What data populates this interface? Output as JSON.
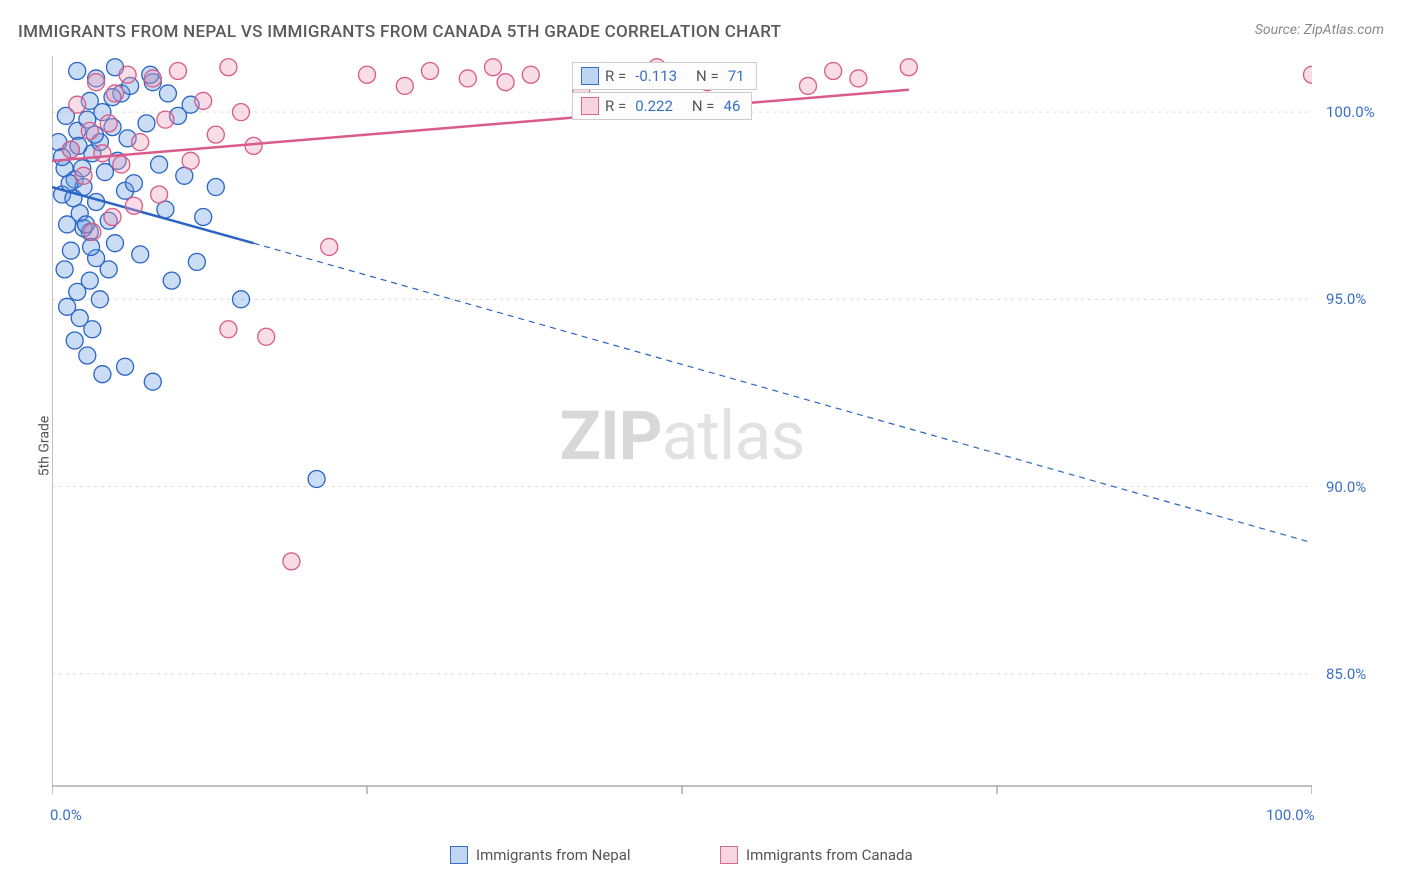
{
  "title": "IMMIGRANTS FROM NEPAL VS IMMIGRANTS FROM CANADA 5TH GRADE CORRELATION CHART",
  "source": "Source: ZipAtlas.com",
  "ylabel": "5th Grade",
  "watermark": {
    "bold": "ZIP",
    "light": "atlas"
  },
  "chart": {
    "type": "scatter",
    "xlim": [
      0,
      100
    ],
    "ylim": [
      82,
      101.5
    ],
    "yticks": [
      {
        "v": 85,
        "l": "85.0%"
      },
      {
        "v": 90,
        "l": "90.0%"
      },
      {
        "v": 95,
        "l": "95.0%"
      },
      {
        "v": 100,
        "l": "100.0%"
      }
    ],
    "xticks_minor": [
      0,
      25,
      50,
      75,
      100
    ],
    "xticks_labels": [
      {
        "v": 0,
        "l": "0.0%"
      },
      {
        "v": 100,
        "l": "100.0%"
      }
    ],
    "grid_color": "#dcdcdc",
    "axis_color": "#9a9a9a",
    "background_color": "#ffffff",
    "marker_radius": 8.5,
    "marker_stroke_width": 1.3,
    "marker_fill_opacity": 0.35,
    "series": [
      {
        "name": "Immigrants from Nepal",
        "color_stroke": "#2b65c4",
        "color_fill": "#6a9de0",
        "R": "-0.113",
        "N": "71",
        "trend": {
          "solid_from": {
            "x": 0,
            "y": 98.0
          },
          "solid_to": {
            "x": 16,
            "y": 96.5
          },
          "dash_to": {
            "x": 100,
            "y": 88.5
          },
          "width_solid": 2.5,
          "width_dash": 1.2,
          "dash": "6,5"
        },
        "points": [
          [
            0.8,
            97.8
          ],
          [
            1.0,
            98.5
          ],
          [
            1.2,
            97.0
          ],
          [
            1.5,
            99.0
          ],
          [
            1.8,
            98.2
          ],
          [
            2.0,
            99.5
          ],
          [
            2.2,
            97.3
          ],
          [
            2.5,
            98.0
          ],
          [
            2.8,
            99.8
          ],
          [
            3.0,
            96.8
          ],
          [
            3.2,
            98.9
          ],
          [
            3.5,
            97.6
          ],
          [
            3.8,
            99.2
          ],
          [
            4.0,
            100.0
          ],
          [
            4.2,
            98.4
          ],
          [
            4.5,
            97.1
          ],
          [
            4.8,
            99.6
          ],
          [
            5.0,
            96.5
          ],
          [
            5.2,
            98.7
          ],
          [
            5.5,
            100.5
          ],
          [
            5.8,
            97.9
          ],
          [
            6.0,
            99.3
          ],
          [
            6.5,
            98.1
          ],
          [
            7.0,
            96.2
          ],
          [
            7.5,
            99.7
          ],
          [
            8.0,
            100.8
          ],
          [
            8.5,
            98.6
          ],
          [
            9.0,
            97.4
          ],
          [
            9.5,
            95.5
          ],
          [
            10.0,
            99.9
          ],
          [
            10.5,
            98.3
          ],
          [
            11.0,
            100.2
          ],
          [
            11.5,
            96.0
          ],
          [
            12.0,
            97.2
          ],
          [
            1.0,
            95.8
          ],
          [
            1.5,
            96.3
          ],
          [
            2.0,
            95.2
          ],
          [
            2.5,
            96.9
          ],
          [
            3.0,
            95.5
          ],
          [
            3.5,
            96.1
          ],
          [
            1.2,
            94.8
          ],
          [
            2.2,
            94.5
          ],
          [
            3.8,
            95.0
          ],
          [
            4.5,
            95.8
          ],
          [
            1.8,
            93.9
          ],
          [
            3.2,
            94.2
          ],
          [
            2.8,
            93.5
          ],
          [
            4.0,
            93.0
          ],
          [
            5.8,
            93.2
          ],
          [
            8.0,
            92.8
          ],
          [
            3.5,
            100.9
          ],
          [
            4.8,
            100.4
          ],
          [
            6.2,
            100.7
          ],
          [
            7.8,
            101.0
          ],
          [
            9.2,
            100.5
          ],
          [
            2.0,
            101.1
          ],
          [
            3.0,
            100.3
          ],
          [
            5.0,
            101.2
          ],
          [
            13.0,
            98.0
          ],
          [
            15.0,
            95.0
          ],
          [
            21.0,
            90.2
          ],
          [
            0.5,
            99.2
          ],
          [
            0.8,
            98.8
          ],
          [
            1.1,
            99.9
          ],
          [
            1.4,
            98.1
          ],
          [
            1.7,
            97.7
          ],
          [
            2.1,
            99.1
          ],
          [
            2.4,
            98.5
          ],
          [
            2.7,
            97.0
          ],
          [
            3.1,
            96.4
          ],
          [
            3.4,
            99.4
          ]
        ]
      },
      {
        "name": "Immigrants from Canada",
        "color_stroke": "#d85b89",
        "color_fill": "#ec9ab6",
        "R": "0.222",
        "N": "46",
        "trend": {
          "solid_from": {
            "x": 0,
            "y": 98.7
          },
          "solid_to": {
            "x": 68,
            "y": 100.6
          },
          "dash_to": null,
          "width_solid": 2.5
        },
        "points": [
          [
            1.5,
            99.0
          ],
          [
            2.0,
            100.2
          ],
          [
            2.5,
            98.3
          ],
          [
            3.0,
            99.5
          ],
          [
            3.5,
            100.8
          ],
          [
            4.0,
            98.9
          ],
          [
            4.5,
            99.7
          ],
          [
            5.0,
            100.5
          ],
          [
            5.5,
            98.6
          ],
          [
            6.0,
            101.0
          ],
          [
            7.0,
            99.2
          ],
          [
            8.0,
            100.9
          ],
          [
            9.0,
            99.8
          ],
          [
            10.0,
            101.1
          ],
          [
            11.0,
            98.7
          ],
          [
            12.0,
            100.3
          ],
          [
            13.0,
            99.4
          ],
          [
            14.0,
            101.2
          ],
          [
            15.0,
            100.0
          ],
          [
            16.0,
            99.1
          ],
          [
            22.0,
            96.4
          ],
          [
            25.0,
            101.0
          ],
          [
            28.0,
            100.7
          ],
          [
            30.0,
            101.1
          ],
          [
            33.0,
            100.9
          ],
          [
            35.0,
            101.2
          ],
          [
            36.0,
            100.8
          ],
          [
            38.0,
            101.0
          ],
          [
            42.0,
            100.6
          ],
          [
            44.0,
            101.1
          ],
          [
            46.0,
            100.9
          ],
          [
            48.0,
            101.2
          ],
          [
            52.0,
            100.8
          ],
          [
            54.0,
            101.0
          ],
          [
            60.0,
            100.7
          ],
          [
            62.0,
            101.1
          ],
          [
            64.0,
            100.9
          ],
          [
            68.0,
            101.2
          ],
          [
            100.0,
            101.0
          ],
          [
            19.0,
            88.0
          ],
          [
            14.0,
            94.2
          ],
          [
            17.0,
            94.0
          ],
          [
            6.5,
            97.5
          ],
          [
            8.5,
            97.8
          ],
          [
            4.8,
            97.2
          ],
          [
            3.2,
            96.8
          ]
        ]
      }
    ]
  },
  "legend_top": {
    "prefix_r": "R =",
    "prefix_n": "N ="
  },
  "legend_bottom": {
    "items": [
      "Immigrants from Nepal",
      "Immigrants from Canada"
    ]
  }
}
